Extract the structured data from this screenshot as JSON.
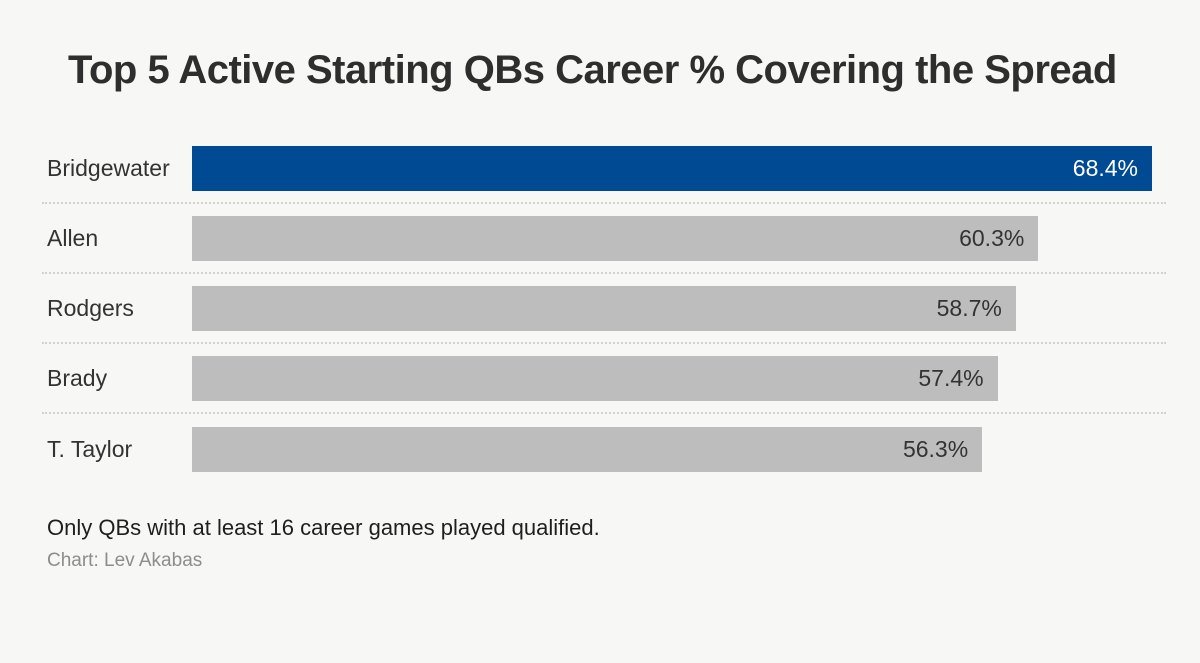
{
  "title": "Top 5 Active Starting QBs Career % Covering the Spread",
  "footnote": "Only QBs with at least 16 career games played qualified.",
  "credit": "Chart: Lev Akabas",
  "colors": {
    "background": "#f7f7f5",
    "highlight_bar": "#004a93",
    "default_bar": "#bdbdbd",
    "title_text": "#2e2e2e",
    "label_text": "#333333",
    "credit_text": "#8f8d8a",
    "separator_dots": "#d4d2d0"
  },
  "chart_data": {
    "type": "bar",
    "orientation": "horizontal",
    "title": "Top 5 Active Starting QBs Career % Covering the Spread",
    "categories": [
      "Bridgewater",
      "Allen",
      "Rodgers",
      "Brady",
      "T. Taylor"
    ],
    "values": [
      68.4,
      60.3,
      58.7,
      57.4,
      56.3
    ],
    "value_labels": [
      "68.4%",
      "60.3%",
      "58.7%",
      "57.4%",
      "56.3%"
    ],
    "highlighted_category": "Bridgewater",
    "xlabel": "",
    "ylabel": "",
    "xlim": [
      0,
      68.4
    ],
    "grid": false,
    "legend": false,
    "annotations": [
      "Only QBs with at least 16 career games played qualified.",
      "Chart: Lev Akabas"
    ]
  }
}
